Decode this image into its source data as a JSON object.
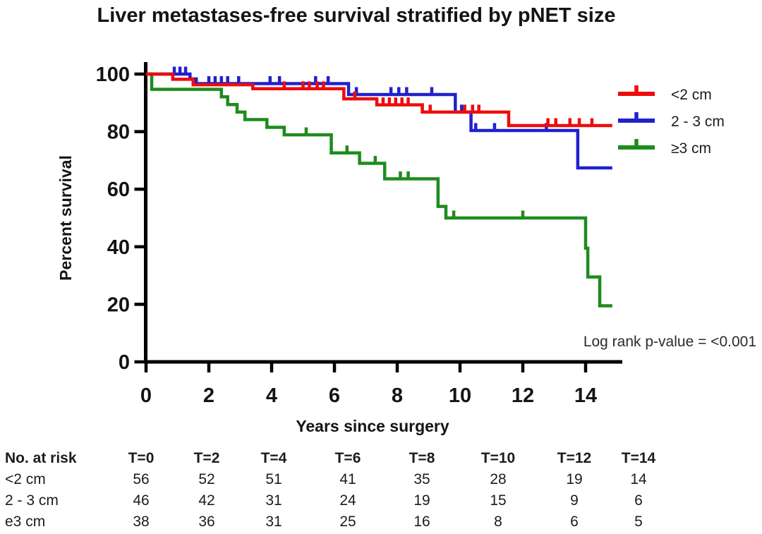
{
  "chart_data": {
    "type": "line",
    "subtype": "kaplan-meier-step-curves",
    "title": "Liver metastases-free survival stratified by pNET size",
    "xlabel": "Years since surgery",
    "ylabel": "Percent survival",
    "xlim": [
      0,
      15.2
    ],
    "ylim": [
      0,
      100
    ],
    "xticks": [
      0,
      2,
      4,
      6,
      8,
      10,
      12,
      14
    ],
    "yticks": [
      0,
      20,
      40,
      60,
      80,
      100
    ],
    "grid": false,
    "legend_position": "right-top",
    "annotation": "Log rank p-value = <0.001",
    "axis_color": "#000000",
    "series": [
      {
        "name": "<2 cm",
        "color": "#ee0c0c",
        "steps": [
          [
            0,
            100
          ],
          [
            0.85,
            98.2
          ],
          [
            1.5,
            96.3
          ],
          [
            3.4,
            94.9
          ],
          [
            6.3,
            91.4
          ],
          [
            7.35,
            89.3
          ],
          [
            8.8,
            86.8
          ],
          [
            11.55,
            82.1
          ]
        ],
        "end": 14.85,
        "censors": [
          [
            4.4,
            94.9
          ],
          [
            5.0,
            94.9
          ],
          [
            5.2,
            94.9
          ],
          [
            5.45,
            94.9
          ],
          [
            5.65,
            94.9
          ],
          [
            6.65,
            91.4
          ],
          [
            7.55,
            89.3
          ],
          [
            7.75,
            89.3
          ],
          [
            7.95,
            89.3
          ],
          [
            8.15,
            89.3
          ],
          [
            8.35,
            89.3
          ],
          [
            9.05,
            86.8
          ],
          [
            10.15,
            86.8
          ],
          [
            10.4,
            86.8
          ],
          [
            10.6,
            86.8
          ],
          [
            12.8,
            82.1
          ],
          [
            13.05,
            82.1
          ],
          [
            13.5,
            82.1
          ],
          [
            13.8,
            82.1
          ],
          [
            14.2,
            82.1
          ]
        ]
      },
      {
        "name": "2 - 3 cm",
        "color": "#2121cd",
        "steps": [
          [
            0,
            100
          ],
          [
            1.4,
            98.3
          ],
          [
            1.6,
            96.7
          ],
          [
            6.45,
            92.9
          ],
          [
            9.85,
            86.8
          ],
          [
            10.35,
            80.4
          ],
          [
            13.75,
            67.4
          ]
        ],
        "end": 14.85,
        "censors": [
          [
            0.9,
            100
          ],
          [
            1.08,
            100
          ],
          [
            1.26,
            100
          ],
          [
            2.0,
            96.7
          ],
          [
            2.2,
            96.7
          ],
          [
            2.4,
            96.7
          ],
          [
            2.6,
            96.7
          ],
          [
            2.95,
            96.7
          ],
          [
            3.95,
            96.7
          ],
          [
            4.25,
            96.7
          ],
          [
            5.4,
            96.7
          ],
          [
            5.8,
            96.7
          ],
          [
            6.7,
            92.9
          ],
          [
            7.8,
            92.9
          ],
          [
            8.05,
            92.9
          ],
          [
            8.3,
            92.9
          ],
          [
            9.1,
            92.9
          ],
          [
            10.05,
            86.8
          ],
          [
            10.5,
            80.4
          ],
          [
            11.1,
            80.4
          ],
          [
            12.75,
            80.4
          ]
        ]
      },
      {
        "name": "≥3 cm",
        "color": "#1d8c1d",
        "steps": [
          [
            0,
            100
          ],
          [
            0.18,
            94.7
          ],
          [
            2.4,
            92.1
          ],
          [
            2.6,
            89.4
          ],
          [
            2.9,
            86.8
          ],
          [
            3.15,
            84.2
          ],
          [
            3.85,
            81.5
          ],
          [
            4.4,
            78.9
          ],
          [
            5.9,
            72.6
          ],
          [
            6.8,
            69.0
          ],
          [
            7.6,
            63.6
          ],
          [
            9.3,
            54.0
          ],
          [
            9.55,
            50.0
          ],
          [
            14.0,
            39.5
          ],
          [
            14.07,
            29.5
          ],
          [
            14.45,
            19.5
          ]
        ],
        "end": 14.85,
        "censors": [
          [
            5.1,
            78.9
          ],
          [
            6.4,
            72.6
          ],
          [
            7.3,
            69.0
          ],
          [
            8.1,
            63.6
          ],
          [
            8.35,
            63.6
          ],
          [
            9.8,
            50.0
          ],
          [
            12.0,
            50.0
          ]
        ]
      }
    ],
    "at_risk": {
      "label": "No. at risk",
      "time_headers": [
        "T=0",
        "T=2",
        "T=4",
        "T=6",
        "T=8",
        "T=10",
        "T=12",
        "T=14"
      ],
      "rows": [
        {
          "label": "<2 cm",
          "values": [
            56,
            52,
            51,
            41,
            35,
            28,
            19,
            14
          ]
        },
        {
          "label": "2 - 3 cm",
          "values": [
            46,
            42,
            31,
            24,
            19,
            15,
            9,
            6
          ]
        },
        {
          "label": "e3 cm",
          "values": [
            38,
            36,
            31,
            25,
            16,
            8,
            6,
            5
          ]
        }
      ]
    }
  }
}
